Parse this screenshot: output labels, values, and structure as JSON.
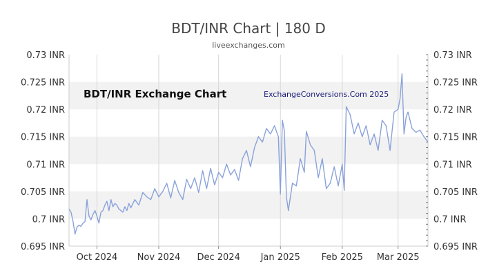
{
  "chart_data": {
    "type": "line",
    "title": "BDT/INR Chart | 180 D",
    "subtitle": "liveexchanges.com",
    "inner_title": "BDT/INR Exchange Chart",
    "watermark": "ExchangeConversions.Com 2025",
    "ylim": [
      0.695,
      0.73
    ],
    "y_ticks": [
      0.695,
      0.7,
      0.705,
      0.71,
      0.715,
      0.72,
      0.725,
      0.73
    ],
    "y_tick_labels": [
      "0.695 INR",
      "0.7 INR",
      "0.705 INR",
      "0.71 INR",
      "0.715 INR",
      "0.72 INR",
      "0.725 INR",
      "0.73 INR"
    ],
    "x_range": [
      "2024-09-17",
      "2025-03-16"
    ],
    "x_ticks": [
      "2024-10-01",
      "2024-11-01",
      "2024-12-01",
      "2025-01-01",
      "2025-02-01",
      "2025-03-01"
    ],
    "x_tick_labels": [
      "Oct 2024",
      "Nov 2024",
      "Dec 2024",
      "Jan 2025",
      "Feb 2025",
      "Mar 2025"
    ],
    "grid": true,
    "bands": true,
    "line_color": "#8aa2da",
    "band_color": "#f2f2f2",
    "series": [
      {
        "x": [
          "2024-09-17",
          "2024-09-18",
          "2024-09-19",
          "2024-09-20",
          "2024-09-21",
          "2024-09-22",
          "2024-09-23",
          "2024-09-24",
          "2024-09-25",
          "2024-09-26",
          "2024-09-27",
          "2024-09-28",
          "2024-09-29",
          "2024-09-30",
          "2024-10-01",
          "2024-10-02",
          "2024-10-03",
          "2024-10-04",
          "2024-10-05",
          "2024-10-06",
          "2024-10-07",
          "2024-10-08",
          "2024-10-09",
          "2024-10-10",
          "2024-10-11",
          "2024-10-12",
          "2024-10-13",
          "2024-10-14",
          "2024-10-15",
          "2024-10-16",
          "2024-10-17",
          "2024-10-18",
          "2024-10-20",
          "2024-10-22",
          "2024-10-24",
          "2024-10-26",
          "2024-10-28",
          "2024-10-30",
          "2024-11-01",
          "2024-11-03",
          "2024-11-05",
          "2024-11-07",
          "2024-11-09",
          "2024-11-11",
          "2024-11-13",
          "2024-11-15",
          "2024-11-17",
          "2024-11-19",
          "2024-11-21",
          "2024-11-23",
          "2024-11-25",
          "2024-11-27",
          "2024-11-29",
          "2024-12-01",
          "2024-12-03",
          "2024-12-05",
          "2024-12-07",
          "2024-12-09",
          "2024-12-11",
          "2024-12-13",
          "2024-12-15",
          "2024-12-17",
          "2024-12-19",
          "2024-12-21",
          "2024-12-23",
          "2024-12-25",
          "2024-12-27",
          "2024-12-29",
          "2024-12-31",
          "2025-01-01",
          "2025-01-02",
          "2025-01-03",
          "2025-01-04",
          "2025-01-05",
          "2025-01-07",
          "2025-01-09",
          "2025-01-11",
          "2025-01-13",
          "2025-01-14",
          "2025-01-16",
          "2025-01-18",
          "2025-01-20",
          "2025-01-22",
          "2025-01-24",
          "2025-01-26",
          "2025-01-28",
          "2025-01-30",
          "2025-02-01",
          "2025-02-02",
          "2025-02-03",
          "2025-02-05",
          "2025-02-07",
          "2025-02-09",
          "2025-02-11",
          "2025-02-13",
          "2025-02-15",
          "2025-02-17",
          "2025-02-19",
          "2025-02-21",
          "2025-02-23",
          "2025-02-25",
          "2025-02-27",
          "2025-03-01",
          "2025-03-02",
          "2025-03-03",
          "2025-03-04",
          "2025-03-05",
          "2025-03-06",
          "2025-03-08",
          "2025-03-10",
          "2025-03-12",
          "2025-03-14",
          "2025-03-16"
        ],
        "y": [
          0.7018,
          0.7012,
          0.6995,
          0.6972,
          0.6985,
          0.6988,
          0.6986,
          0.6992,
          0.6995,
          0.7035,
          0.7005,
          0.6998,
          0.7008,
          0.7015,
          0.7005,
          0.6992,
          0.7012,
          0.7015,
          0.7025,
          0.7032,
          0.7015,
          0.7035,
          0.7022,
          0.7028,
          0.7025,
          0.7018,
          0.7015,
          0.7012,
          0.7022,
          0.7015,
          0.7028,
          0.702,
          0.7035,
          0.7025,
          0.7048,
          0.704,
          0.7035,
          0.7055,
          0.704,
          0.705,
          0.7065,
          0.7038,
          0.707,
          0.7048,
          0.7035,
          0.7072,
          0.7055,
          0.7075,
          0.7048,
          0.7088,
          0.7055,
          0.7092,
          0.7062,
          0.7085,
          0.7075,
          0.71,
          0.708,
          0.709,
          0.707,
          0.711,
          0.7125,
          0.7095,
          0.713,
          0.715,
          0.714,
          0.7165,
          0.7155,
          0.717,
          0.715,
          0.7045,
          0.718,
          0.716,
          0.704,
          0.7015,
          0.7065,
          0.706,
          0.711,
          0.7085,
          0.716,
          0.7135,
          0.7125,
          0.7075,
          0.711,
          0.7055,
          0.7065,
          0.7095,
          0.706,
          0.71,
          0.7052,
          0.7205,
          0.719,
          0.7155,
          0.7175,
          0.715,
          0.717,
          0.7135,
          0.7155,
          0.7125,
          0.718,
          0.717,
          0.7125,
          0.7195,
          0.72,
          0.722,
          0.7265,
          0.7155,
          0.7185,
          0.7195,
          0.7165,
          0.7158,
          0.7162,
          0.715,
          0.714
        ]
      }
    ]
  }
}
